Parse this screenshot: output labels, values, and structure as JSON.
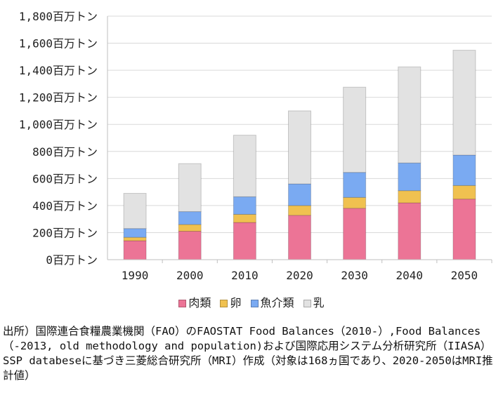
{
  "chart_data": {
    "type": "bar",
    "stacked": true,
    "categories": [
      "1990",
      "2000",
      "2010",
      "2020",
      "2030",
      "2040",
      "2050"
    ],
    "series": [
      {
        "name": "肉類",
        "color": "#ec7496",
        "values": [
          140,
          210,
          275,
          328,
          380,
          420,
          448
        ]
      },
      {
        "name": "卵",
        "color": "#f0c150",
        "values": [
          25,
          50,
          60,
          72,
          80,
          90,
          100
        ]
      },
      {
        "name": "魚介類",
        "color": "#7aaaf2",
        "values": [
          65,
          95,
          130,
          160,
          185,
          205,
          225
        ]
      },
      {
        "name": "乳",
        "color": "#e2e2e2",
        "values": [
          260,
          355,
          455,
          540,
          630,
          710,
          775
        ]
      }
    ],
    "y_ticks": [
      "0百万トン",
      "200百万トン",
      "400百万トン",
      "600百万トン",
      "800百万トン",
      "1,000百万トン",
      "1,200百万トン",
      "1,400百万トン",
      "1,600百万トン",
      "1,800百万トン"
    ],
    "ylim": [
      0,
      1800
    ],
    "y_unit": "百万トン",
    "grid": true,
    "legend_position": "bottom"
  },
  "source_note": "出所）国際連合食糧農業機関（FAO）のFAOSTAT Food Balances（2010-）,Food Balances（-2013, old methodology and population)および国際応用システム分析研究所（IIASA） SSP databeseに基づき三菱総合研究所（MRI）作成（対象は168ヵ国であり、2020-2050はMRI推計値）"
}
